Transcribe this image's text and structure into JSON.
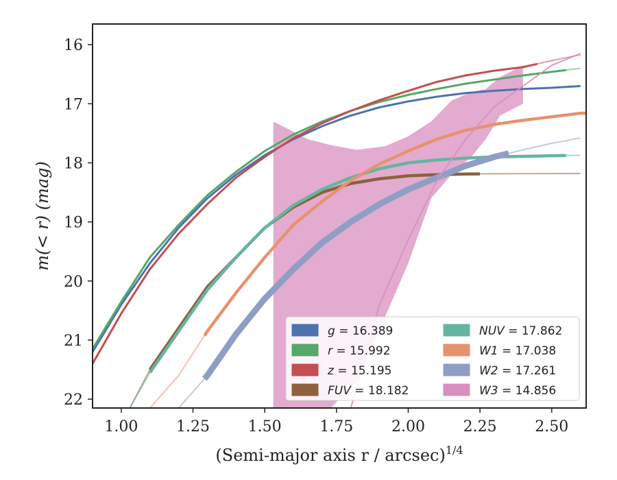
{
  "chart_data": {
    "type": "line",
    "title": "",
    "xlabel": "(Semi-major axis r / arcsec)",
    "xlabel_sup": "1/4",
    "ylabel": "m(< r) (mag)",
    "xlim": [
      0.9,
      2.62
    ],
    "ylim": [
      22.15,
      15.65
    ],
    "y_inverted": true,
    "xticks": [
      "1.00",
      "1.25",
      "1.50",
      "1.75",
      "2.00",
      "2.25",
      "2.50"
    ],
    "yticks": [
      "16",
      "17",
      "18",
      "19",
      "20",
      "21",
      "22"
    ],
    "grid": false,
    "legend_position": "lower-right",
    "series": [
      {
        "name": "g = 16.389",
        "prefix": "g",
        "value": "16.389",
        "color": "#4c72b0",
        "x": [
          0.9,
          1.0,
          1.1,
          1.2,
          1.3,
          1.4,
          1.5,
          1.6,
          1.7,
          1.8,
          1.9,
          2.0,
          2.1,
          2.2,
          2.3,
          2.4,
          2.5,
          2.6
        ],
        "y": [
          21.2,
          20.4,
          19.7,
          19.1,
          18.6,
          18.2,
          17.87,
          17.6,
          17.38,
          17.2,
          17.06,
          16.96,
          16.88,
          16.82,
          16.78,
          16.75,
          16.73,
          16.7
        ],
        "obs_until": 2.6
      },
      {
        "name": "r = 15.992",
        "prefix": "r",
        "value": "15.992",
        "color": "#55a868",
        "x": [
          0.9,
          1.0,
          1.1,
          1.2,
          1.3,
          1.4,
          1.5,
          1.6,
          1.7,
          1.8,
          1.9,
          2.0,
          2.1,
          2.2,
          2.3,
          2.4,
          2.5,
          2.6
        ],
        "y": [
          21.15,
          20.35,
          19.6,
          19.05,
          18.55,
          18.15,
          17.8,
          17.52,
          17.3,
          17.12,
          16.97,
          16.85,
          16.75,
          16.66,
          16.59,
          16.52,
          16.46,
          16.4
        ],
        "obs_until": 2.55
      },
      {
        "name": "z = 15.195",
        "prefix": "z",
        "value": "15.195",
        "color": "#c44e52",
        "x": [
          0.9,
          1.0,
          1.1,
          1.2,
          1.3,
          1.4,
          1.5,
          1.6,
          1.7,
          1.8,
          1.9,
          2.0,
          2.1,
          2.2,
          2.3,
          2.4,
          2.5,
          2.6
        ],
        "y": [
          21.4,
          20.55,
          19.8,
          19.2,
          18.7,
          18.25,
          17.9,
          17.58,
          17.33,
          17.12,
          16.94,
          16.78,
          16.63,
          16.52,
          16.44,
          16.38,
          16.27,
          16.17
        ],
        "obs_until": 2.45
      },
      {
        "name": "FUV = 18.182",
        "prefix": "FUV",
        "value": "18.182",
        "color": "#8c613c",
        "x": [
          1.03,
          1.1,
          1.2,
          1.3,
          1.4,
          1.5,
          1.6,
          1.7,
          1.8,
          1.9,
          2.0,
          2.1,
          2.2,
          2.3,
          2.4,
          2.5,
          2.6
        ],
        "y": [
          22.15,
          21.5,
          20.8,
          20.1,
          19.6,
          19.1,
          18.75,
          18.5,
          18.35,
          18.27,
          18.22,
          18.2,
          18.19,
          18.185,
          18.183,
          18.182,
          18.18
        ],
        "obs_from": 1.1,
        "obs_until": 2.25
      },
      {
        "name": "NUV = 17.862",
        "prefix": "NUV",
        "value": "17.862",
        "color": "#64b5a0",
        "x": [
          1.03,
          1.1,
          1.2,
          1.3,
          1.4,
          1.5,
          1.6,
          1.7,
          1.8,
          1.9,
          2.0,
          2.1,
          2.2,
          2.3,
          2.4,
          2.5,
          2.6
        ],
        "y": [
          22.15,
          21.55,
          20.85,
          20.15,
          19.6,
          19.1,
          18.72,
          18.45,
          18.25,
          18.1,
          18.0,
          17.95,
          17.92,
          17.9,
          17.89,
          17.88,
          17.87
        ],
        "obs_from": 1.1,
        "obs_until": 2.55
      },
      {
        "name": "W1 = 17.038",
        "prefix": "W1",
        "value": "17.038",
        "color": "#e8916e",
        "x": [
          1.1,
          1.2,
          1.3,
          1.4,
          1.5,
          1.6,
          1.7,
          1.8,
          1.9,
          2.0,
          2.1,
          2.2,
          2.3,
          2.4,
          2.5,
          2.6
        ],
        "y": [
          22.15,
          21.6,
          20.85,
          20.2,
          19.6,
          19.05,
          18.65,
          18.3,
          18.02,
          17.8,
          17.6,
          17.45,
          17.35,
          17.28,
          17.22,
          17.16
        ],
        "obs_from": 1.29,
        "obs_until": 2.62
      },
      {
        "name": "W2 = 17.261",
        "prefix": "W2",
        "value": "17.261",
        "color": "#8f9ec4",
        "x": [
          1.2,
          1.3,
          1.4,
          1.5,
          1.6,
          1.7,
          1.8,
          1.9,
          2.0,
          2.1,
          2.2,
          2.3,
          2.4,
          2.5,
          2.6
        ],
        "y": [
          22.15,
          21.6,
          20.9,
          20.3,
          19.8,
          19.35,
          19.0,
          18.7,
          18.45,
          18.25,
          18.05,
          17.9,
          17.78,
          17.67,
          17.58
        ],
        "obs_from": 1.29,
        "obs_until": 2.35
      },
      {
        "name": "W3 = 14.856",
        "prefix": "W3",
        "value": "14.856",
        "color": "#d88fbf",
        "band_x": [
          1.53,
          1.57,
          1.65,
          1.73,
          1.82,
          1.92,
          2.0,
          2.08,
          2.15,
          2.22,
          2.27,
          2.32,
          2.36,
          2.4
        ],
        "band_upper": [
          17.3,
          17.4,
          17.6,
          17.7,
          17.78,
          17.72,
          17.55,
          17.3,
          16.95,
          16.8,
          16.75,
          16.55,
          16.45,
          16.35
        ],
        "band_lower": [
          22.15,
          22.15,
          22.15,
          22.15,
          21.7,
          20.6,
          19.7,
          18.6,
          18.2,
          17.9,
          17.6,
          17.2,
          17.1,
          17.0
        ],
        "model_x": [
          1.8,
          1.9,
          2.0,
          2.1,
          2.2,
          2.3,
          2.4,
          2.5,
          2.6
        ],
        "model_y": [
          22.15,
          20.4,
          19.3,
          18.3,
          17.6,
          17.05,
          16.7,
          16.35,
          16.15
        ]
      }
    ]
  }
}
